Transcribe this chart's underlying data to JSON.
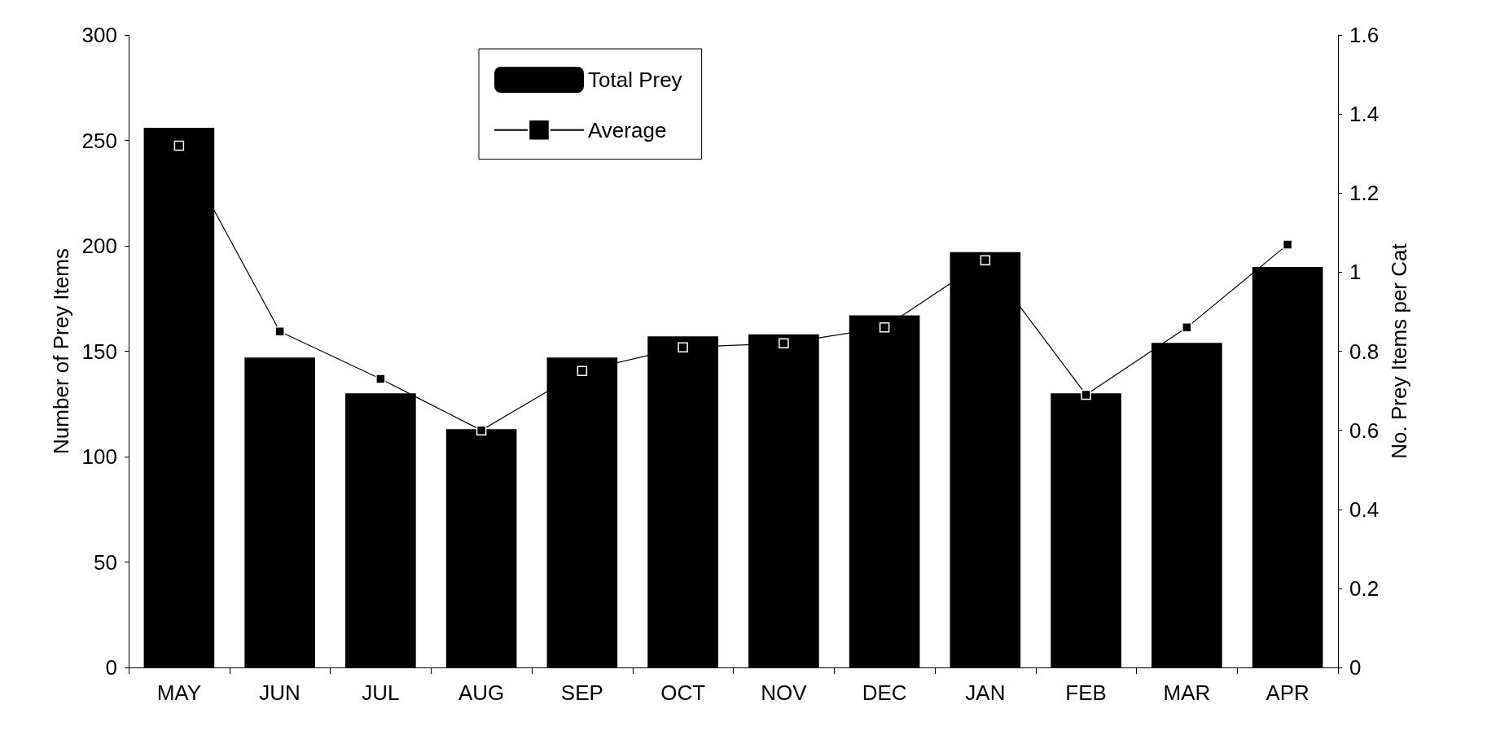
{
  "chart_data": {
    "type": "bar",
    "xlabel": null,
    "ylabel": "Number of Prey Items",
    "y2label": "No. Prey Items per Cat",
    "categories": [
      "MAY",
      "JUN",
      "JUL",
      "AUG",
      "SEP",
      "OCT",
      "NOV",
      "DEC",
      "JAN",
      "FEB",
      "MAR",
      "APR"
    ],
    "series": [
      {
        "name": "Total Prey",
        "color": "#000000",
        "values": [
          256,
          147,
          130,
          113,
          147,
          157,
          158,
          167,
          197,
          130,
          154,
          190
        ]
      },
      {
        "name": "Average",
        "type": "line",
        "axis": "y2",
        "color": "#000000",
        "marker": "square",
        "values": [
          1.32,
          0.85,
          0.73,
          0.6,
          0.75,
          0.81,
          0.82,
          0.86,
          1.03,
          0.69,
          0.86,
          1.07
        ]
      }
    ],
    "ylim": [
      0,
      300
    ],
    "yticks": [
      0,
      50,
      100,
      150,
      200,
      250,
      300
    ],
    "y2lim": [
      0,
      1.6
    ],
    "y2ticks": [
      0,
      0.2,
      0.4,
      0.6,
      0.8,
      1,
      1.2,
      1.4,
      1.6
    ],
    "grid": false,
    "legend": "top"
  }
}
